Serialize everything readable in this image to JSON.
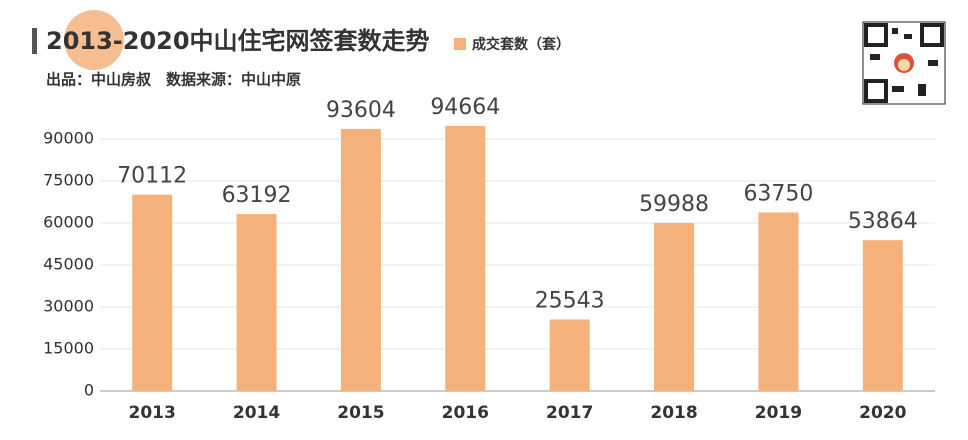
{
  "chart_data": {
    "type": "bar",
    "title": "2013-2020中山住宅网签套数走势",
    "subtitle": "出品：中山房叔　数据来源：中山中原",
    "categories": [
      "2013",
      "2014",
      "2015",
      "2016",
      "2017",
      "2018",
      "2019",
      "2020"
    ],
    "series": [
      {
        "name": "成交套数（套）",
        "color": "#f5b17c",
        "values": [
          70112,
          63192,
          93604,
          94664,
          25543,
          59988,
          63750,
          53864
        ]
      }
    ],
    "ylim": [
      0,
      100000
    ],
    "yticks": [
      0,
      15000,
      30000,
      45000,
      60000,
      75000,
      90000
    ],
    "grid": true
  }
}
